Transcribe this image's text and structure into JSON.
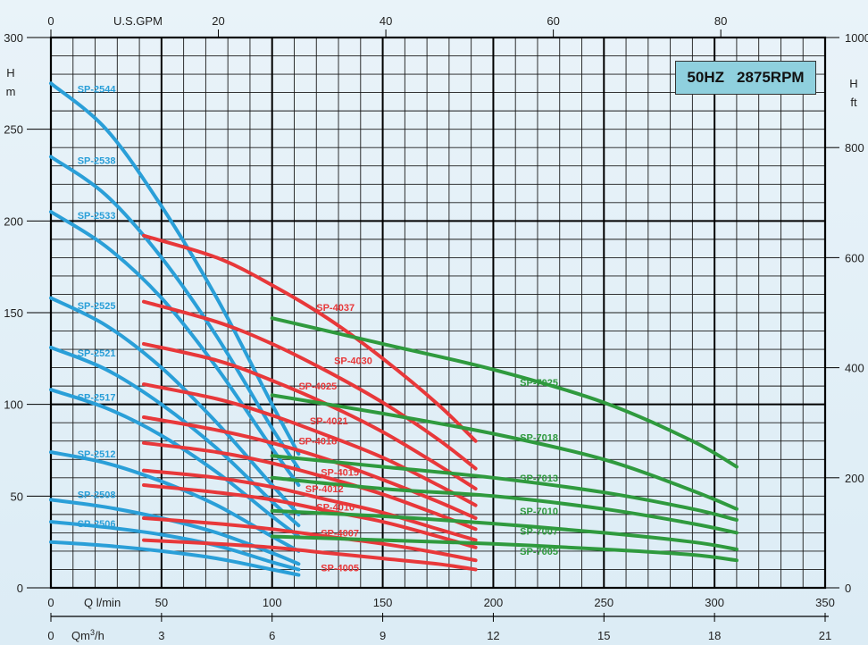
{
  "badge": {
    "frequency": "50HZ",
    "speed": "2875RPM"
  },
  "units": {
    "left_top": "H",
    "left_bottom": "m",
    "right_top": "H",
    "right_bottom": "ft",
    "top": "U.S.GPM",
    "bottom1": "Q l/min",
    "bottom2_prefix": "Qm",
    "bottom2_sup": "3",
    "bottom2_suffix": "/h"
  },
  "colors": {
    "SP-25": "#2a9fd8",
    "SP-40": "#e8383a",
    "SP-70": "#2f9a3e",
    "grid": "#111111"
  },
  "chart_data": {
    "type": "line",
    "title": "",
    "xlabel": "Q l/min",
    "ylabel": "H m",
    "xlim": [
      0,
      350
    ],
    "ylim": [
      0,
      300
    ],
    "grid": true,
    "secondary_axes": {
      "top": {
        "label": "U.S.GPM",
        "ticks": [
          0,
          20,
          40,
          60,
          80
        ]
      },
      "bottom_m3h": {
        "label": "Qm3/h",
        "ticks": [
          0,
          3,
          6,
          9,
          12,
          15,
          18,
          21
        ]
      },
      "right_ft": {
        "label": "H ft",
        "ticks": [
          0,
          200,
          400,
          600,
          800,
          1000
        ]
      }
    },
    "x_ticks": [
      0,
      50,
      100,
      150,
      200,
      250,
      300,
      350
    ],
    "y_ticks": [
      0,
      50,
      100,
      150,
      200,
      250,
      300
    ],
    "series": [
      {
        "name": "SP-2544",
        "group": "SP-25",
        "x": [
          0,
          25,
          50,
          75,
          100,
          112
        ],
        "y": [
          275,
          250,
          208,
          158,
          100,
          73
        ]
      },
      {
        "name": "SP-2538",
        "group": "SP-25",
        "x": [
          0,
          25,
          50,
          75,
          100,
          112
        ],
        "y": [
          235,
          214,
          180,
          137,
          87,
          65
        ]
      },
      {
        "name": "SP-2533",
        "group": "SP-25",
        "x": [
          0,
          25,
          50,
          75,
          100,
          112
        ],
        "y": [
          205,
          186,
          158,
          120,
          76,
          56
        ]
      },
      {
        "name": "SP-2525",
        "group": "SP-25",
        "x": [
          0,
          25,
          50,
          75,
          100,
          112
        ],
        "y": [
          158,
          143,
          120,
          90,
          56,
          40
        ]
      },
      {
        "name": "SP-2521",
        "group": "SP-25",
        "x": [
          0,
          25,
          50,
          75,
          100,
          112
        ],
        "y": [
          131,
          119,
          100,
          76,
          47,
          34
        ]
      },
      {
        "name": "SP-2517",
        "group": "SP-25",
        "x": [
          0,
          25,
          50,
          75,
          100,
          112
        ],
        "y": [
          108,
          98,
          83,
          63,
          39,
          28
        ]
      },
      {
        "name": "SP-2512",
        "group": "SP-25",
        "x": [
          0,
          25,
          50,
          75,
          100,
          112
        ],
        "y": [
          74,
          68,
          58,
          45,
          28,
          20
        ]
      },
      {
        "name": "SP-2508",
        "group": "SP-25",
        "x": [
          0,
          25,
          50,
          75,
          100,
          112
        ],
        "y": [
          48,
          44,
          38,
          30,
          19,
          13
        ]
      },
      {
        "name": "SP-2506",
        "group": "SP-25",
        "x": [
          0,
          25,
          50,
          75,
          100,
          112
        ],
        "y": [
          36,
          33,
          29,
          23,
          14,
          10
        ]
      },
      {
        "name": "",
        "group": "SP-25",
        "x": [
          0,
          25,
          50,
          75,
          100,
          112
        ],
        "y": [
          25,
          23,
          20,
          16,
          10,
          7
        ]
      },
      {
        "name": "SP-4037",
        "group": "SP-40",
        "x": [
          42,
          75,
          100,
          125,
          150,
          175,
          192
        ],
        "y": [
          192,
          180,
          165,
          147,
          125,
          100,
          80
        ]
      },
      {
        "name": "SP-4030",
        "group": "SP-40",
        "x": [
          42,
          75,
          100,
          125,
          150,
          175,
          192
        ],
        "y": [
          156,
          145,
          133,
          118,
          101,
          81,
          65
        ]
      },
      {
        "name": "SP-4025",
        "group": "SP-40",
        "x": [
          42,
          75,
          100,
          125,
          150,
          175,
          192
        ],
        "y": [
          133,
          124,
          113,
          100,
          85,
          67,
          54
        ]
      },
      {
        "name": "SP-4021",
        "group": "SP-40",
        "x": [
          42,
          75,
          100,
          125,
          150,
          175,
          192
        ],
        "y": [
          111,
          103,
          94,
          83,
          71,
          56,
          45
        ]
      },
      {
        "name": "SP-4018",
        "group": "SP-40",
        "x": [
          42,
          75,
          100,
          125,
          150,
          175,
          192
        ],
        "y": [
          93,
          86,
          79,
          70,
          59,
          47,
          38
        ]
      },
      {
        "name": "SP-4015",
        "group": "SP-40",
        "x": [
          42,
          75,
          100,
          125,
          150,
          175,
          192
        ],
        "y": [
          79,
          74,
          68,
          60,
          51,
          40,
          32
        ]
      },
      {
        "name": "SP-4012",
        "group": "SP-40",
        "x": [
          42,
          75,
          100,
          125,
          150,
          175,
          192
        ],
        "y": [
          64,
          60,
          55,
          48,
          41,
          32,
          26
        ]
      },
      {
        "name": "SP-4010",
        "group": "SP-40",
        "x": [
          42,
          75,
          100,
          125,
          150,
          175,
          192
        ],
        "y": [
          56,
          52,
          48,
          42,
          36,
          28,
          22
        ]
      },
      {
        "name": "SP-4007",
        "group": "SP-40",
        "x": [
          42,
          75,
          100,
          125,
          150,
          175,
          192
        ],
        "y": [
          38,
          35,
          32,
          28,
          24,
          19,
          15
        ]
      },
      {
        "name": "SP-4005",
        "group": "SP-40",
        "x": [
          42,
          75,
          100,
          125,
          150,
          175,
          192
        ],
        "y": [
          26,
          24,
          22,
          19,
          16,
          13,
          10
        ]
      },
      {
        "name": "SP-7025",
        "group": "SP-70",
        "x": [
          100,
          150,
          200,
          250,
          290,
          310
        ],
        "y": [
          147,
          133,
          119,
          101,
          80,
          66
        ]
      },
      {
        "name": "SP-7018",
        "group": "SP-70",
        "x": [
          100,
          150,
          200,
          250,
          290,
          310
        ],
        "y": [
          105,
          95,
          84,
          70,
          53,
          43
        ]
      },
      {
        "name": "SP-7013",
        "group": "SP-70",
        "x": [
          100,
          150,
          200,
          250,
          290,
          310
        ],
        "y": [
          72,
          66,
          60,
          52,
          43,
          37
        ]
      },
      {
        "name": "SP-7010",
        "group": "SP-70",
        "x": [
          100,
          150,
          200,
          250,
          290,
          310
        ],
        "y": [
          60,
          54,
          50,
          43,
          35,
          30
        ]
      },
      {
        "name": "SP-7007",
        "group": "SP-70",
        "x": [
          100,
          150,
          200,
          250,
          290,
          310
        ],
        "y": [
          42,
          39,
          35,
          30,
          25,
          21
        ]
      },
      {
        "name": "SP-7005",
        "group": "SP-70",
        "x": [
          100,
          150,
          200,
          250,
          290,
          310
        ],
        "y": [
          28,
          26,
          24,
          21,
          18,
          15
        ]
      }
    ],
    "curve_labels": [
      {
        "text": "SP-2544",
        "x": 12,
        "y": 272
      },
      {
        "text": "SP-2538",
        "x": 12,
        "y": 233
      },
      {
        "text": "SP-2533",
        "x": 12,
        "y": 203
      },
      {
        "text": "SP-2525",
        "x": 12,
        "y": 154
      },
      {
        "text": "SP-2521",
        "x": 12,
        "y": 128
      },
      {
        "text": "SP-2517",
        "x": 12,
        "y": 104
      },
      {
        "text": "SP-2512",
        "x": 12,
        "y": 73
      },
      {
        "text": "SP-2508",
        "x": 12,
        "y": 51
      },
      {
        "text": "SP-2506",
        "x": 12,
        "y": 35
      },
      {
        "text": "SP-4037",
        "x": 120,
        "y": 153
      },
      {
        "text": "SP-4030",
        "x": 128,
        "y": 124
      },
      {
        "text": "SP-4025",
        "x": 112,
        "y": 110
      },
      {
        "text": "SP-4021",
        "x": 117,
        "y": 91
      },
      {
        "text": "SP-4018",
        "x": 112,
        "y": 80
      },
      {
        "text": "SP-4015",
        "x": 122,
        "y": 63
      },
      {
        "text": "SP-4012",
        "x": 115,
        "y": 54
      },
      {
        "text": "SP-4010",
        "x": 120,
        "y": 44
      },
      {
        "text": "SP-4007",
        "x": 122,
        "y": 30
      },
      {
        "text": "SP-4005",
        "x": 122,
        "y": 11
      },
      {
        "text": "SP-7025",
        "x": 212,
        "y": 112
      },
      {
        "text": "SP-7018",
        "x": 212,
        "y": 82
      },
      {
        "text": "SP-7013",
        "x": 212,
        "y": 60
      },
      {
        "text": "SP-7010",
        "x": 212,
        "y": 42
      },
      {
        "text": "SP-7007",
        "x": 212,
        "y": 31
      },
      {
        "text": "SP-7005",
        "x": 212,
        "y": 20
      }
    ]
  }
}
